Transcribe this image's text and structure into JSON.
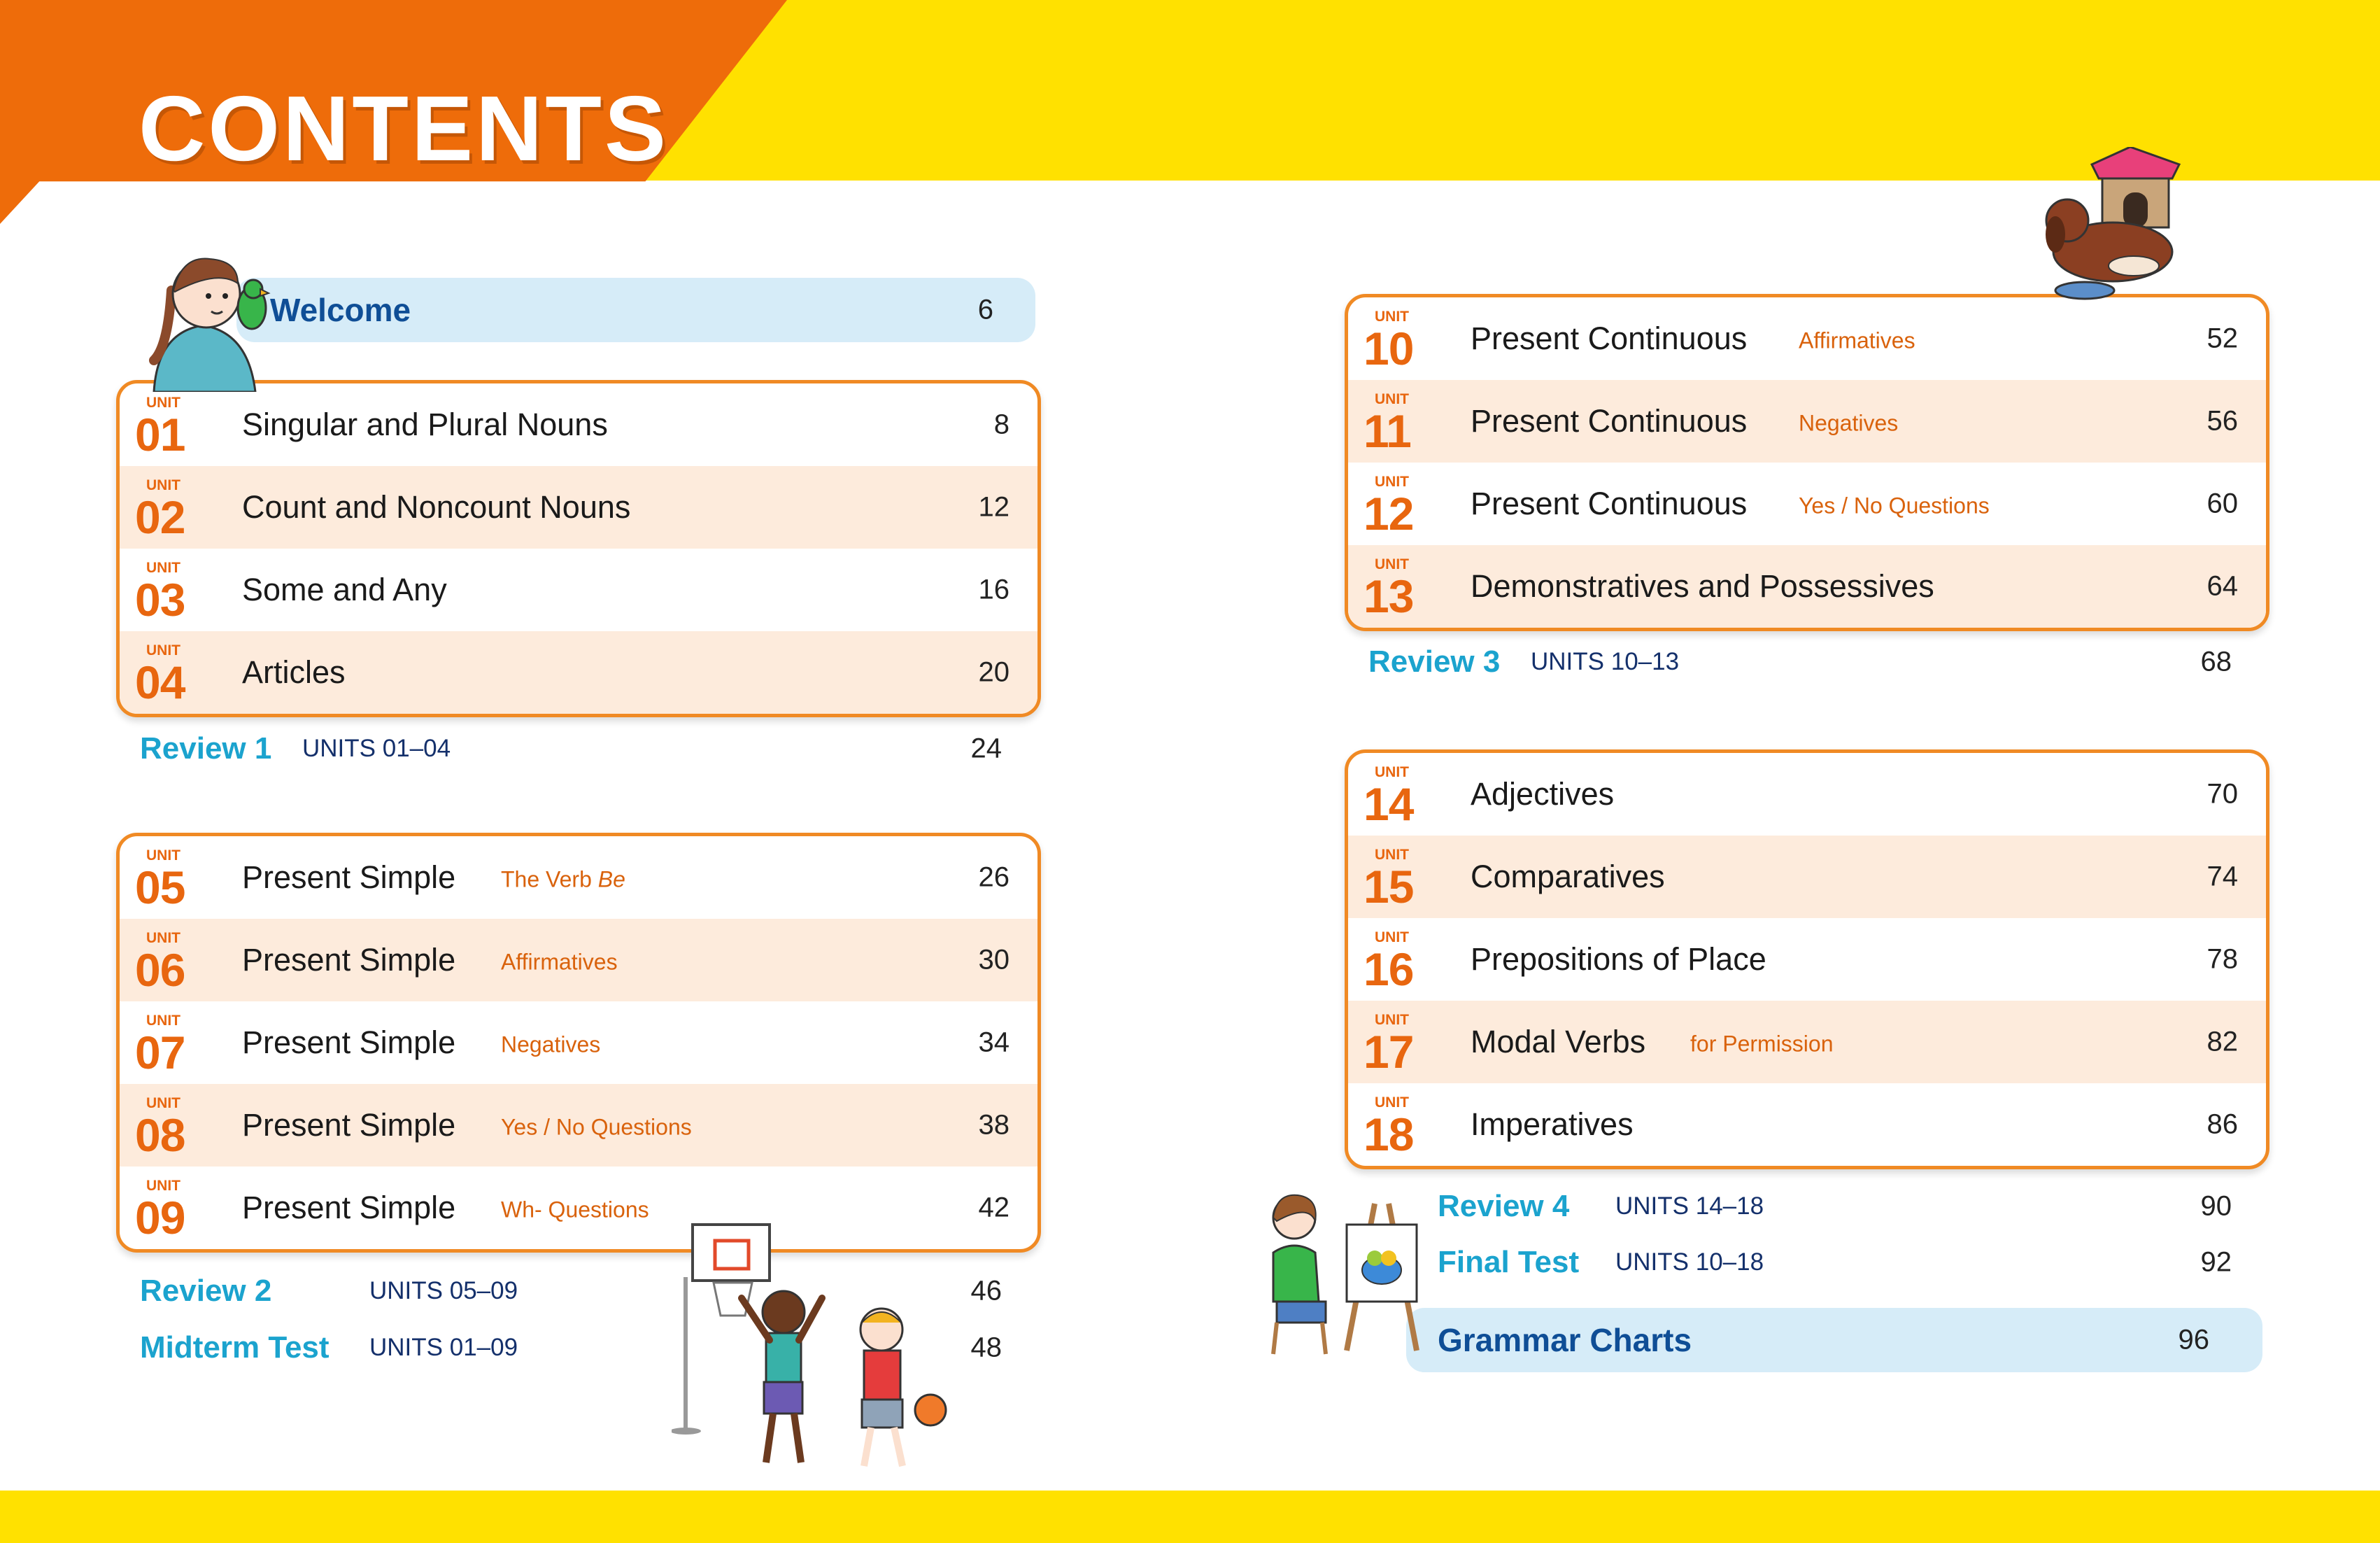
{
  "header": {
    "title": "CONTENTS"
  },
  "colors": {
    "yellow": "#FFE100",
    "orange": "#EE6C0A",
    "unit_accent": "#E8660F",
    "review_blue": "#1BA3CE",
    "pill_bg": "#D6ECF8"
  },
  "welcome": {
    "label": "Welcome",
    "page": "6"
  },
  "unit_word": "UNIT",
  "groups": [
    {
      "units": [
        {
          "num": "01",
          "title": "Singular and Plural Nouns",
          "sub": "",
          "page": "8"
        },
        {
          "num": "02",
          "title": "Count and Noncount Nouns",
          "sub": "",
          "page": "12"
        },
        {
          "num": "03",
          "title": "Some and Any",
          "sub": "",
          "page": "16"
        },
        {
          "num": "04",
          "title": "Articles",
          "sub": "",
          "page": "20"
        }
      ]
    },
    {
      "units": [
        {
          "num": "05",
          "title": "Present Simple",
          "sub": "The Verb",
          "sub_em": "Be",
          "page": "26"
        },
        {
          "num": "06",
          "title": "Present Simple",
          "sub": "Affirmatives",
          "page": "30"
        },
        {
          "num": "07",
          "title": "Present Simple",
          "sub": "Negatives",
          "page": "34"
        },
        {
          "num": "08",
          "title": "Present Simple",
          "sub": "Yes / No Questions",
          "page": "38"
        },
        {
          "num": "09",
          "title": "Present Simple",
          "sub": "Wh- Questions",
          "page": "42"
        }
      ]
    },
    {
      "units": [
        {
          "num": "10",
          "title": "Present Continuous",
          "sub": "Affirmatives",
          "page": "52"
        },
        {
          "num": "11",
          "title": "Present Continuous",
          "sub": "Negatives",
          "page": "56"
        },
        {
          "num": "12",
          "title": "Present Continuous",
          "sub": "Yes / No Questions",
          "page": "60"
        },
        {
          "num": "13",
          "title": "Demonstratives and Possessives",
          "sub": "",
          "page": "64"
        }
      ]
    },
    {
      "units": [
        {
          "num": "14",
          "title": "Adjectives",
          "sub": "",
          "page": "70"
        },
        {
          "num": "15",
          "title": "Comparatives",
          "sub": "",
          "page": "74"
        },
        {
          "num": "16",
          "title": "Prepositions of Place",
          "sub": "",
          "page": "78"
        },
        {
          "num": "17",
          "title": "Modal Verbs",
          "sub": "for Permission",
          "page": "82"
        },
        {
          "num": "18",
          "title": "Imperatives",
          "sub": "",
          "page": "86"
        }
      ]
    }
  ],
  "reviews": [
    {
      "label": "Review 1",
      "units": "UNITS 01–04",
      "page": "24"
    },
    {
      "label": "Review 2",
      "units": "UNITS 05–09",
      "page": "46"
    },
    {
      "label": "Midterm Test",
      "units": "UNITS 01–09",
      "page": "48"
    },
    {
      "label": "Review 3",
      "units": "UNITS 10–13",
      "page": "68"
    },
    {
      "label": "Review 4",
      "units": "UNITS 14–18",
      "page": "90"
    },
    {
      "label": "Final Test",
      "units": "UNITS 10–18",
      "page": "92"
    }
  ],
  "grammar_charts": {
    "label": "Grammar Charts",
    "page": "96"
  }
}
